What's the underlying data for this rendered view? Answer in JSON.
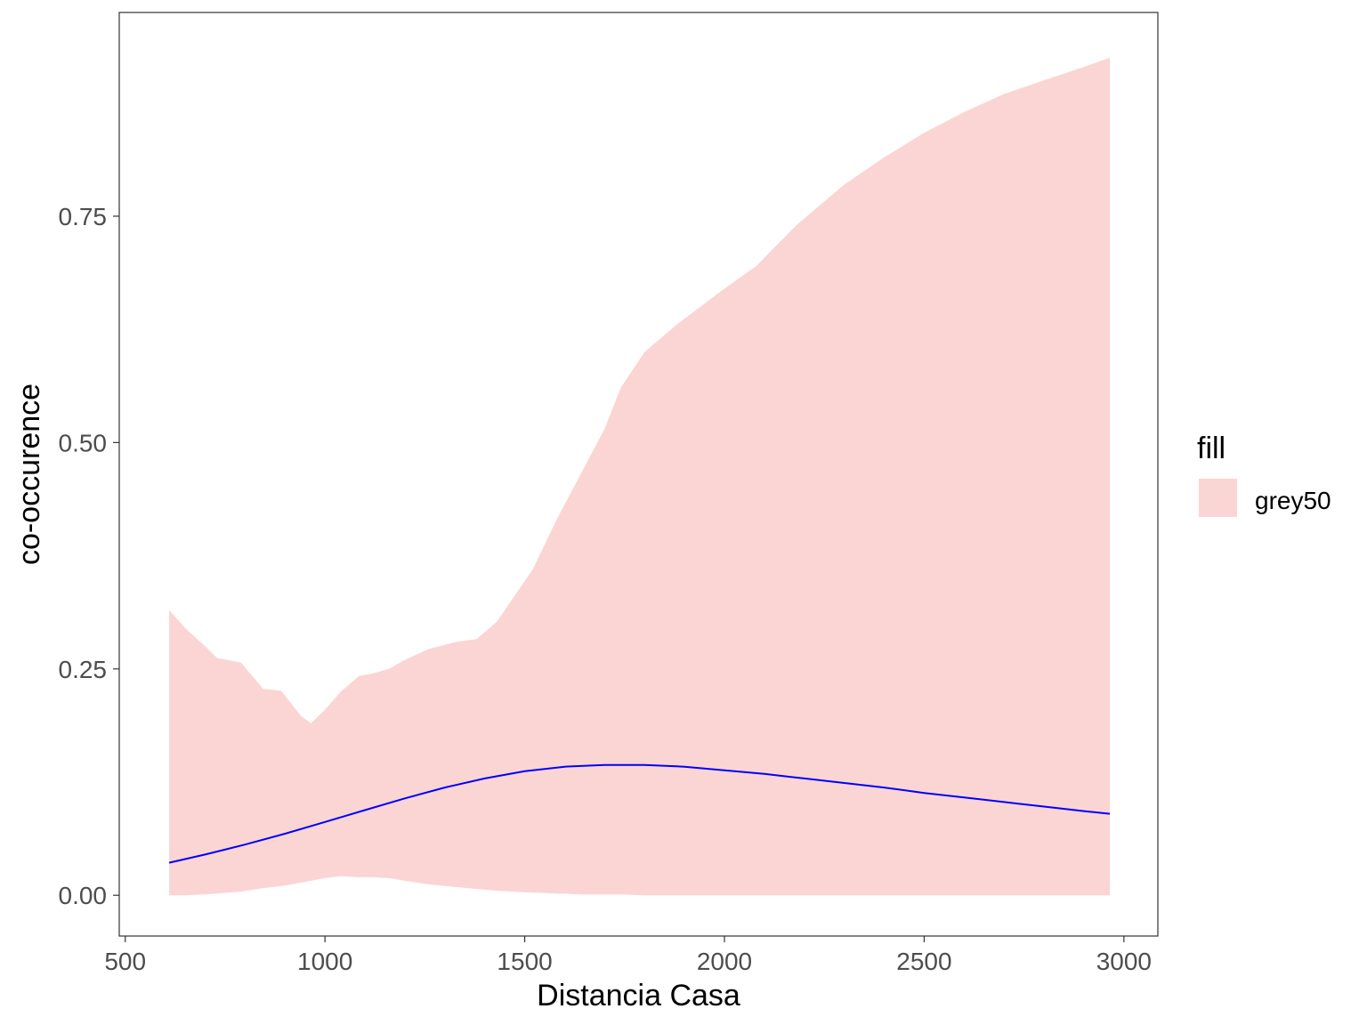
{
  "chart_data": {
    "type": "area",
    "xlabel": "Distancia Casa",
    "ylabel": "co-occurence",
    "xlim": [
      485,
      3085
    ],
    "ylim": [
      -0.045,
      0.975
    ],
    "x_ticks": [
      500,
      1000,
      1500,
      2000,
      2500,
      3000
    ],
    "x_tick_labels": [
      "500",
      "1000",
      "1500",
      "2000",
      "2500",
      "3000"
    ],
    "y_ticks": [
      0,
      0.25,
      0.5,
      0.75
    ],
    "y_tick_labels": [
      "0.00",
      "0.25",
      "0.50",
      "0.75"
    ],
    "grid": false,
    "legend": {
      "title": "fill",
      "position": "right",
      "entries": [
        {
          "label": "grey50",
          "color": "#fbd5d3"
        }
      ]
    },
    "series": [
      {
        "kind": "ribbon",
        "color": "#fbd5d3",
        "x": [
          610,
          650,
          700,
          730,
          790,
          845,
          890,
          940,
          965,
          1000,
          1040,
          1085,
          1120,
          1160,
          1200,
          1260,
          1330,
          1380,
          1430,
          1520,
          1580,
          1640,
          1700,
          1740,
          1800,
          1880,
          2000,
          2080,
          2180,
          2300,
          2400,
          2500,
          2600,
          2700,
          2800,
          2900,
          2965
        ],
        "upper": [
          0.315,
          0.295,
          0.275,
          0.262,
          0.257,
          0.228,
          0.226,
          0.198,
          0.19,
          0.205,
          0.225,
          0.242,
          0.245,
          0.25,
          0.26,
          0.272,
          0.28,
          0.283,
          0.302,
          0.36,
          0.415,
          0.465,
          0.515,
          0.56,
          0.6,
          0.63,
          0.67,
          0.695,
          0.74,
          0.785,
          0.815,
          0.842,
          0.865,
          0.885,
          0.9,
          0.915,
          0.925
        ],
        "lower": [
          0.0,
          0.0,
          0.001,
          0.002,
          0.004,
          0.008,
          0.01,
          0.014,
          0.016,
          0.019,
          0.021,
          0.02,
          0.02,
          0.019,
          0.016,
          0.012,
          0.009,
          0.007,
          0.005,
          0.003,
          0.002,
          0.001,
          0.001,
          0.001,
          0.0,
          0.0,
          0.0,
          0.0,
          0.0,
          0.0,
          0.0,
          0.0,
          0.0,
          0.0,
          0.0,
          0.0,
          0.0
        ]
      },
      {
        "kind": "line",
        "color": "#0000ff",
        "x": [
          610,
          700,
          800,
          900,
          1000,
          1100,
          1200,
          1300,
          1400,
          1500,
          1600,
          1700,
          1800,
          1900,
          2000,
          2100,
          2200,
          2300,
          2400,
          2500,
          2600,
          2700,
          2800,
          2900,
          2965
        ],
        "y": [
          0.036,
          0.045,
          0.056,
          0.068,
          0.081,
          0.094,
          0.107,
          0.119,
          0.129,
          0.137,
          0.142,
          0.144,
          0.144,
          0.142,
          0.138,
          0.134,
          0.129,
          0.124,
          0.119,
          0.113,
          0.108,
          0.103,
          0.098,
          0.093,
          0.09
        ]
      }
    ]
  }
}
